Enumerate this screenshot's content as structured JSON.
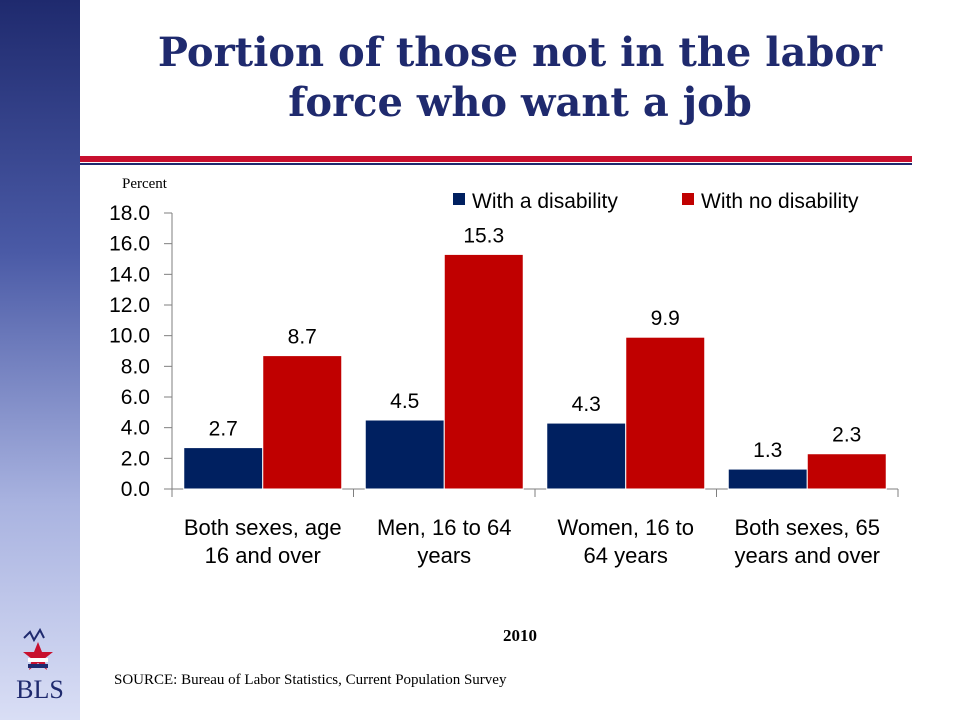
{
  "title": "Portion of those not in the labor force who want a job",
  "rules": {
    "red": "#c8102e",
    "blue": "#1f2a6e"
  },
  "chart_data": {
    "type": "bar",
    "ylabel": "Percent",
    "xlabel": "2010",
    "ylim": [
      0,
      18
    ],
    "yticks": [
      "0.0",
      "2.0",
      "4.0",
      "6.0",
      "8.0",
      "10.0",
      "12.0",
      "14.0",
      "16.0",
      "18.0"
    ],
    "categories": [
      [
        "Both sexes, age",
        "16 and over"
      ],
      [
        "Men, 16 to 64",
        "years"
      ],
      [
        "Women, 16 to",
        "64 years"
      ],
      [
        "Both sexes, 65",
        "years and over"
      ]
    ],
    "series": [
      {
        "name": "With a disability",
        "color": "#002060",
        "values": [
          2.7,
          4.5,
          4.3,
          1.3
        ],
        "labels": [
          "2.7",
          "4.5",
          "4.3",
          "1.3"
        ]
      },
      {
        "name": "With no disability",
        "color": "#c00000",
        "values": [
          8.7,
          15.3,
          9.9,
          2.3
        ],
        "labels": [
          "8.7",
          "15.3",
          "9.9",
          "2.3"
        ]
      }
    ],
    "legend": "top-right",
    "grid": false
  },
  "source": "SOURCE:  Bureau of Labor Statistics, Current Population Survey",
  "logo": {
    "text": "BLS",
    "icon": "bls-eagle-star-icon"
  }
}
